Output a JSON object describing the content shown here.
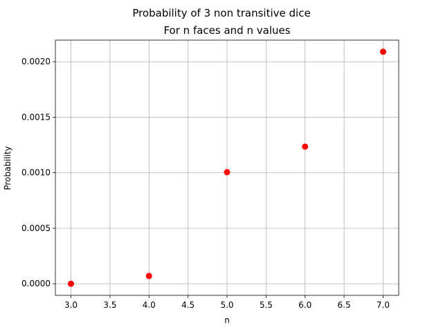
{
  "chart_data": {
    "type": "scatter",
    "suptitle": "Probability of 3 non transitive dice",
    "title": "For n faces and n values",
    "xlabel": "n",
    "ylabel": "Probability",
    "xlim": [
      2.8,
      7.2
    ],
    "ylim": [
      -0.0001045,
      0.0021945
    ],
    "xticks": [
      3.0,
      3.5,
      4.0,
      4.5,
      5.0,
      5.5,
      6.0,
      6.5,
      7.0
    ],
    "xtick_labels": [
      "3.0",
      "3.5",
      "4.0",
      "4.5",
      "5.0",
      "5.5",
      "6.0",
      "6.5",
      "7.0"
    ],
    "yticks": [
      0.0,
      0.0005,
      0.001,
      0.0015,
      0.002
    ],
    "ytick_labels": [
      "0.0000",
      "0.0005",
      "0.0010",
      "0.0015",
      "0.0020"
    ],
    "grid": true,
    "marker_color": "#ff0000",
    "x": [
      3,
      4,
      5,
      6,
      7
    ],
    "y": [
      0.0,
      7e-05,
      0.001005,
      0.001235,
      0.00209
    ]
  }
}
